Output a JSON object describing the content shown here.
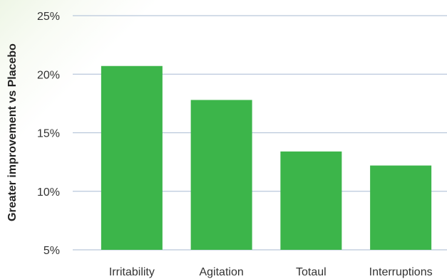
{
  "chart_data": {
    "type": "bar",
    "title": "",
    "xlabel": "",
    "ylabel": "Greater improvement vs Placebo",
    "categories": [
      "Irritability",
      "Agitation",
      "Totaul",
      "Interruptions"
    ],
    "values": [
      20.7,
      17.8,
      13.4,
      12.2
    ],
    "ylim": [
      5,
      25
    ],
    "yticks": [
      5,
      10,
      15,
      20,
      25
    ],
    "ytick_labels": [
      "5%",
      "10%",
      "15%",
      "20%",
      "25%"
    ],
    "grid": true,
    "legend": "none",
    "colors": {
      "bar": "#3cb54a",
      "grid": "#b9c7db",
      "background_tint": "#eef6e6"
    }
  }
}
